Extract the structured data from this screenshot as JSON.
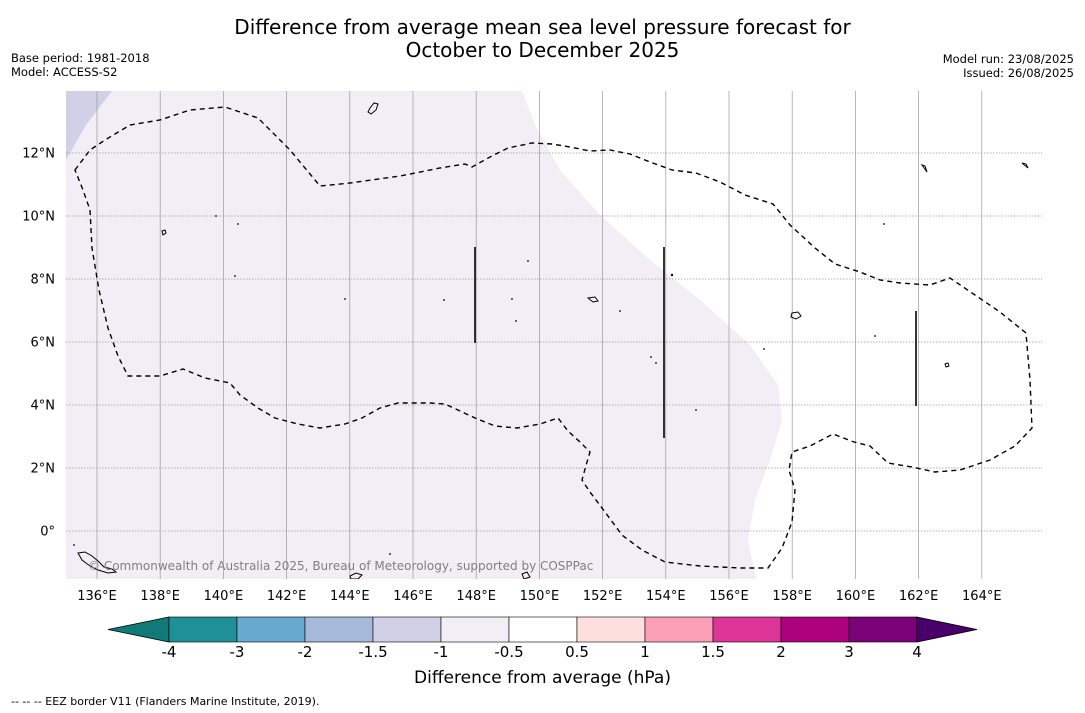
{
  "header": {
    "title_line1": "Difference from average mean sea level pressure forecast for",
    "title_line2": "October to December 2025",
    "base_period": "Base period: 1981-2018",
    "model": "Model: ACCESS-S2",
    "model_run": "Model run: 23/08/2025",
    "issued": "Issued: 26/08/2025"
  },
  "map": {
    "lon_labels": [
      "136°E",
      "138°E",
      "140°E",
      "142°E",
      "144°E",
      "146°E",
      "148°E",
      "150°E",
      "152°E",
      "154°E",
      "156°E",
      "158°E",
      "160°E",
      "162°E",
      "164°E"
    ],
    "lat_labels": [
      "12°N",
      "10°N",
      "8°N",
      "6°N",
      "4°N",
      "2°N",
      "0°"
    ],
    "copyright": "© Commonwealth of Australia 2025, Bureau of Meteorology, supported by COSPPac",
    "fill_light_purple": "#f3edf5",
    "fill_lavender": "#d0d1e6",
    "eez_color": "#000000"
  },
  "colorbar": {
    "tick_labels": [
      "-4",
      "-3",
      "-2",
      "-1.5",
      "-1",
      "-0.5",
      "0.5",
      "1",
      "1.5",
      "2",
      "3",
      "4"
    ],
    "colors": [
      "#0f7a76",
      "#1f9096",
      "#67a9cf",
      "#a6b9da",
      "#d0d1e6",
      "#f3edf5",
      "#ffffff",
      "#fde0dd",
      "#fa9fb5",
      "#dd3497",
      "#ae017e",
      "#7a0177",
      "#49006a"
    ],
    "title": "Difference from average (hPa)"
  },
  "footnote": "--  --  -- EEZ border V11 (Flanders Marine Institute, 2019)."
}
